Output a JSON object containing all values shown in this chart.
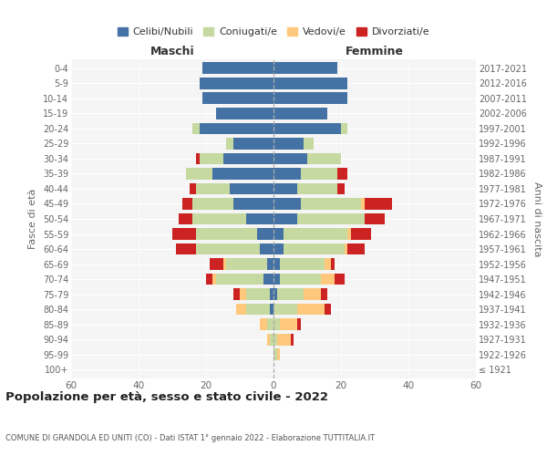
{
  "age_groups": [
    "100+",
    "95-99",
    "90-94",
    "85-89",
    "80-84",
    "75-79",
    "70-74",
    "65-69",
    "60-64",
    "55-59",
    "50-54",
    "45-49",
    "40-44",
    "35-39",
    "30-34",
    "25-29",
    "20-24",
    "15-19",
    "10-14",
    "5-9",
    "0-4"
  ],
  "birth_years": [
    "≤ 1921",
    "1922-1926",
    "1927-1931",
    "1932-1936",
    "1937-1941",
    "1942-1946",
    "1947-1951",
    "1952-1956",
    "1957-1961",
    "1962-1966",
    "1967-1971",
    "1972-1976",
    "1977-1981",
    "1982-1986",
    "1987-1991",
    "1992-1996",
    "1997-2001",
    "2002-2006",
    "2007-2011",
    "2012-2016",
    "2017-2021"
  ],
  "maschi": {
    "celibi": [
      0,
      0,
      0,
      0,
      1,
      1,
      3,
      2,
      4,
      5,
      8,
      12,
      13,
      18,
      15,
      12,
      22,
      17,
      21,
      22,
      21
    ],
    "coniugati": [
      0,
      0,
      1,
      2,
      7,
      7,
      14,
      12,
      19,
      18,
      16,
      12,
      10,
      8,
      7,
      2,
      2,
      0,
      0,
      0,
      0
    ],
    "vedovi": [
      0,
      0,
      1,
      2,
      3,
      2,
      1,
      1,
      0,
      0,
      0,
      0,
      0,
      0,
      0,
      0,
      0,
      0,
      0,
      0,
      0
    ],
    "divorziati": [
      0,
      0,
      0,
      0,
      0,
      2,
      2,
      4,
      6,
      7,
      4,
      3,
      2,
      0,
      1,
      0,
      0,
      0,
      0,
      0,
      0
    ]
  },
  "femmine": {
    "nubili": [
      0,
      0,
      0,
      0,
      0,
      1,
      2,
      2,
      3,
      3,
      7,
      8,
      7,
      8,
      10,
      9,
      20,
      16,
      22,
      22,
      19
    ],
    "coniugate": [
      0,
      1,
      1,
      2,
      7,
      8,
      12,
      13,
      18,
      19,
      20,
      18,
      12,
      11,
      10,
      3,
      2,
      0,
      0,
      0,
      0
    ],
    "vedove": [
      0,
      1,
      4,
      5,
      8,
      5,
      4,
      2,
      1,
      1,
      0,
      1,
      0,
      0,
      0,
      0,
      0,
      0,
      0,
      0,
      0
    ],
    "divorziate": [
      0,
      0,
      1,
      1,
      2,
      2,
      3,
      1,
      5,
      6,
      6,
      8,
      2,
      3,
      0,
      0,
      0,
      0,
      0,
      0,
      0
    ]
  },
  "colors": {
    "celibi": "#4472a4",
    "coniugati": "#c5d9a0",
    "vedovi": "#ffc87c",
    "divorziati": "#cc2222"
  },
  "xlim": 60,
  "title": "Popolazione per età, sesso e stato civile - 2022",
  "subtitle": "COMUNE DI GRANDOLA ED UNITI (CO) - Dati ISTAT 1° gennaio 2022 - Elaborazione TUTTITALIA.IT",
  "ylabel": "Fasce di età",
  "ylabel_right": "Anni di nascita",
  "legend_labels": [
    "Celibi/Nubili",
    "Coniugati/e",
    "Vedovi/e",
    "Divorziati/e"
  ],
  "maschi_label": "Maschi",
  "femmine_label": "Femmine",
  "bg_color": "#f5f5f5"
}
